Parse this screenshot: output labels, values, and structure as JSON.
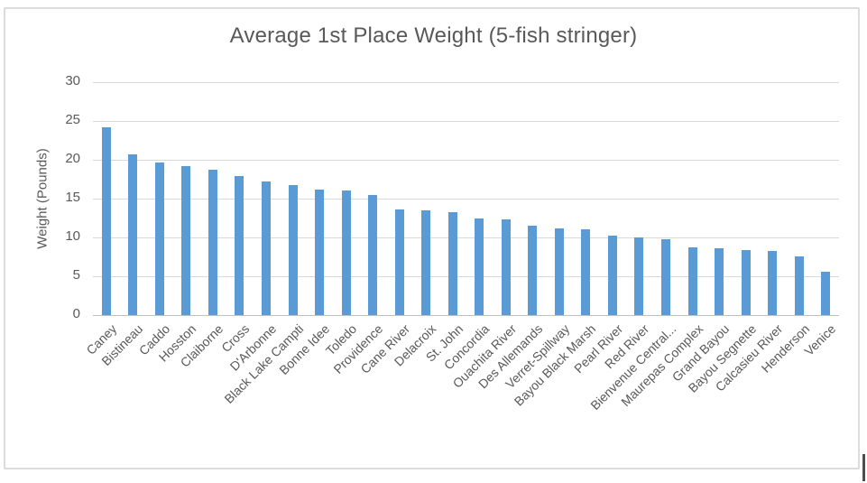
{
  "chart_data": {
    "type": "bar",
    "title": "Average 1st Place Weight (5-fish stringer)",
    "xlabel": "",
    "ylabel": "Weight (Pounds)",
    "ylim": [
      0,
      30
    ],
    "yticks": [
      0,
      5,
      10,
      15,
      20,
      25,
      30
    ],
    "grid": true,
    "legend": "none",
    "bar_color": "#5b9bd5",
    "gridline_color": "#d9d9d9",
    "text_color": "#595959",
    "categories": [
      "Caney",
      "Bistineau",
      "Caddo",
      "Hosston",
      "Claiborne",
      "Cross",
      "D'Arbonne",
      "Black Lake Campti",
      "Bonne Idee",
      "Toledo",
      "Providence",
      "Cane River",
      "Delacroix",
      "St. John",
      "Concordia",
      "Ouachita River",
      "Des Allemands",
      "Verret-Spillway",
      "Bayou Black Marsh",
      "Pearl River",
      "Red River",
      "Bienvenue Central...",
      "Maurepas Complex",
      "Grand Bayou",
      "Bayou Segnette",
      "Calcasieu River",
      "Henderson",
      "Venice"
    ],
    "values": [
      24.2,
      20.7,
      19.6,
      19.2,
      18.7,
      17.9,
      17.2,
      16.7,
      16.2,
      16.0,
      15.5,
      13.6,
      13.5,
      13.2,
      12.4,
      12.3,
      11.5,
      11.2,
      11.1,
      10.2,
      10.0,
      9.8,
      8.7,
      8.6,
      8.4,
      8.3,
      7.6,
      5.6
    ]
  }
}
